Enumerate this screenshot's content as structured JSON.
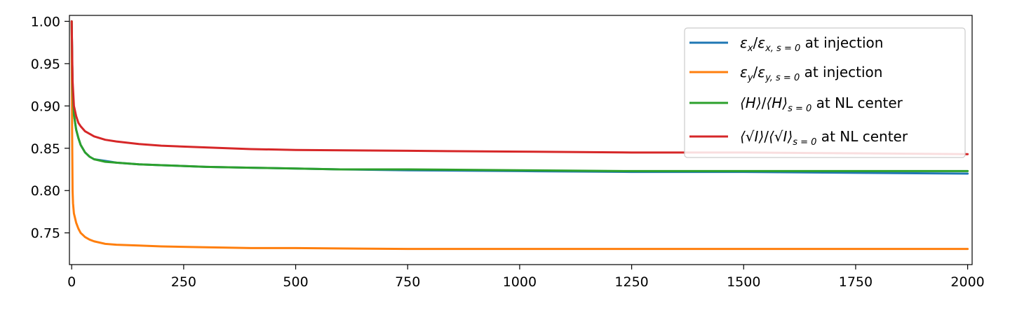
{
  "chart_data": {
    "type": "line",
    "title": "",
    "xlabel": "",
    "ylabel": "",
    "xlim": [
      -5,
      2010
    ],
    "ylim": [
      0.7125,
      1.007
    ],
    "xticks": [
      0,
      250,
      500,
      750,
      1000,
      1250,
      1500,
      1750,
      2000
    ],
    "xtick_labels": [
      "0",
      "250",
      "500",
      "750",
      "1000",
      "1250",
      "1500",
      "1750",
      "2000"
    ],
    "yticks": [
      0.75,
      0.8,
      0.85,
      0.9,
      0.95,
      1.0
    ],
    "ytick_labels": [
      "0.75",
      "0.80",
      "0.85",
      "0.90",
      "0.95",
      "1.00"
    ],
    "grid": false,
    "legend_position": "top-right",
    "series": [
      {
        "name": "εx/εx,s=0 at injection",
        "color": "#1f77b4",
        "x": [
          0,
          2,
          5,
          10,
          15,
          20,
          30,
          40,
          50,
          75,
          100,
          150,
          200,
          300,
          400,
          500,
          600,
          750,
          1000,
          1250,
          1500,
          1750,
          2000
        ],
        "y": [
          1.0,
          0.92,
          0.89,
          0.872,
          0.862,
          0.854,
          0.845,
          0.84,
          0.837,
          0.835,
          0.833,
          0.831,
          0.83,
          0.828,
          0.827,
          0.826,
          0.825,
          0.824,
          0.823,
          0.822,
          0.822,
          0.821,
          0.82
        ]
      },
      {
        "name": "εy/εy,s=0 at injection",
        "color": "#ff7f0e",
        "x": [
          0,
          1,
          2,
          3,
          5,
          10,
          15,
          20,
          30,
          40,
          50,
          75,
          100,
          150,
          200,
          300,
          400,
          500,
          750,
          1000,
          1250,
          1500,
          1750,
          2000
        ],
        "y": [
          1.0,
          0.87,
          0.8,
          0.785,
          0.773,
          0.762,
          0.755,
          0.75,
          0.745,
          0.742,
          0.74,
          0.737,
          0.736,
          0.735,
          0.734,
          0.733,
          0.732,
          0.732,
          0.731,
          0.731,
          0.731,
          0.731,
          0.731,
          0.731
        ]
      },
      {
        "name": "⟨H⟩/⟨H⟩s=0 at NL center",
        "color": "#2ca02c",
        "x": [
          0,
          2,
          5,
          10,
          15,
          20,
          30,
          40,
          50,
          75,
          100,
          150,
          200,
          300,
          400,
          500,
          600,
          750,
          1000,
          1250,
          1500,
          1750,
          2000
        ],
        "y": [
          1.0,
          0.92,
          0.89,
          0.872,
          0.862,
          0.854,
          0.845,
          0.84,
          0.837,
          0.834,
          0.833,
          0.831,
          0.83,
          0.828,
          0.827,
          0.826,
          0.825,
          0.825,
          0.824,
          0.823,
          0.823,
          0.823,
          0.823
        ]
      },
      {
        "name": "⟨√I⟩/⟨√I⟩s=0 at NL center",
        "color": "#d62728",
        "x": [
          0,
          2,
          5,
          10,
          15,
          20,
          30,
          40,
          50,
          75,
          100,
          150,
          200,
          300,
          400,
          500,
          750,
          1000,
          1250,
          1500,
          1750,
          2000
        ],
        "y": [
          1.0,
          0.93,
          0.9,
          0.888,
          0.88,
          0.876,
          0.87,
          0.867,
          0.864,
          0.86,
          0.858,
          0.855,
          0.853,
          0.851,
          0.849,
          0.848,
          0.847,
          0.846,
          0.845,
          0.845,
          0.844,
          0.843
        ]
      }
    ],
    "legend": [
      {
        "main": "ε",
        "main_sub": "x",
        "den": "ε",
        "den_sub": "x, s = 0",
        "suffix": " at injection"
      },
      {
        "main": "ε",
        "main_sub": "y",
        "den": "ε",
        "den_sub": "y, s = 0",
        "suffix": " at injection"
      },
      {
        "main": "⟨H⟩",
        "main_sub": "",
        "den": "⟨H⟩",
        "den_sub": "s = 0",
        "suffix": " at NL center"
      },
      {
        "main": "⟨√I⟩",
        "main_sub": "",
        "den": "⟨√I⟩",
        "den_sub": "s = 0",
        "suffix": " at NL center"
      }
    ]
  }
}
